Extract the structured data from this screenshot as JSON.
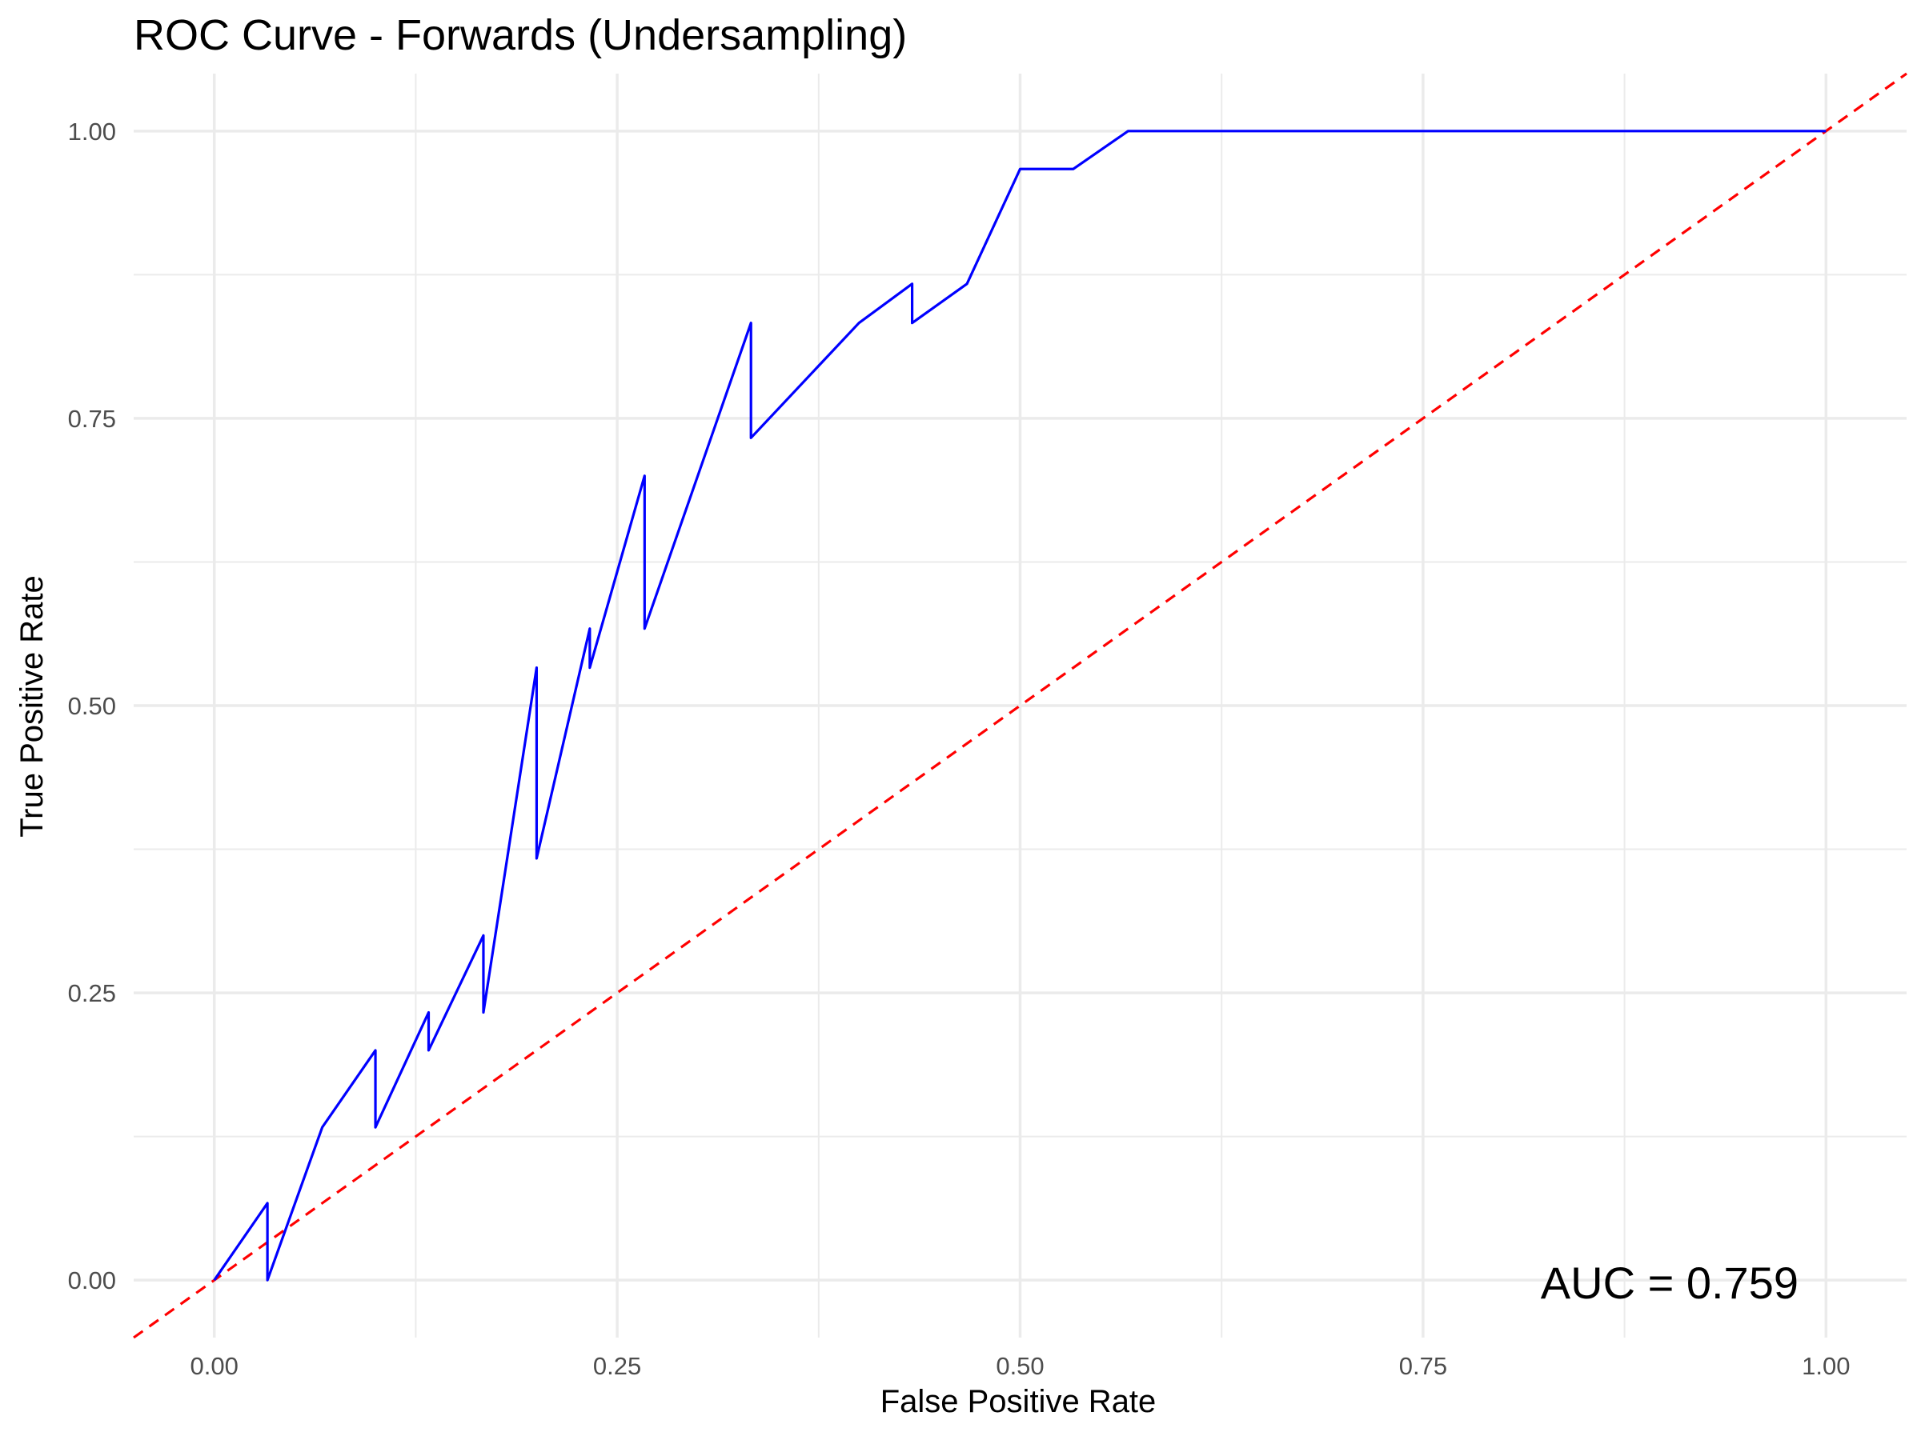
{
  "chart_data": {
    "type": "line",
    "title": "ROC Curve - Forwards (Undersampling)",
    "xlabel": "False Positive Rate",
    "ylabel": "True Positive Rate",
    "xlim": [
      -0.05,
      1.05
    ],
    "ylim": [
      -0.05,
      1.05
    ],
    "x_ticks": [
      0.0,
      0.25,
      0.5,
      0.75,
      1.0
    ],
    "x_tick_labels": [
      "0.00",
      "0.25",
      "0.50",
      "0.75",
      "1.00"
    ],
    "y_ticks": [
      0.0,
      0.25,
      0.5,
      0.75,
      1.0
    ],
    "y_tick_labels": [
      "0.00",
      "0.25",
      "0.50",
      "0.75",
      "1.00"
    ],
    "grid": true,
    "legend": "none",
    "annotation": "AUC = 0.759",
    "series": [
      {
        "color": "#0000ff",
        "style": "solid",
        "x": [
          0.0,
          0.033,
          0.033,
          0.067,
          0.1,
          0.1,
          0.133,
          0.133,
          0.167,
          0.167,
          0.2,
          0.2,
          0.233,
          0.233,
          0.267,
          0.267,
          0.333,
          0.333,
          0.4,
          0.433,
          0.433,
          0.467,
          0.5,
          0.533,
          0.567,
          1.0
        ],
        "y": [
          0.0,
          0.067,
          0.0,
          0.133,
          0.2,
          0.133,
          0.233,
          0.2,
          0.3,
          0.233,
          0.533,
          0.367,
          0.567,
          0.533,
          0.7,
          0.567,
          0.833,
          0.733,
          0.833,
          0.867,
          0.833,
          0.867,
          0.967,
          0.967,
          1.0,
          1.0
        ]
      },
      {
        "color": "#ff0000",
        "style": "dashed",
        "x": [
          -0.05,
          1.05
        ],
        "y": [
          -0.05,
          1.05
        ]
      }
    ]
  }
}
